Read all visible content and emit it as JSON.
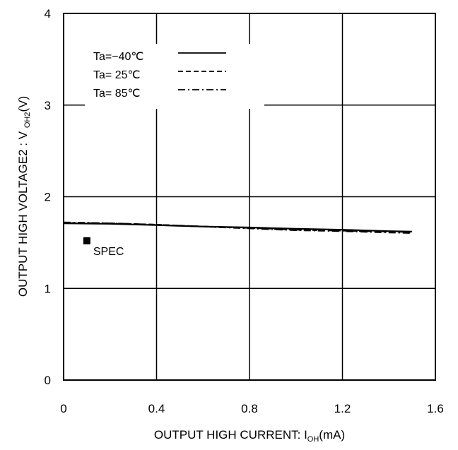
{
  "chart_data": {
    "type": "line",
    "xlabel": {
      "main": "OUTPUT HIGH CURRENT: I",
      "sub": "OH",
      "tail": "(mA)"
    },
    "ylabel": {
      "main": "OUTPUT HIGH VOLTAGE2 : V ",
      "sub": "OH2",
      "tail": "(V)"
    },
    "xlim": [
      0,
      1.6
    ],
    "ylim": [
      0,
      4
    ],
    "x_ticks": [
      "0",
      "0.4",
      "0.8",
      "1.2",
      "1.6"
    ],
    "y_ticks": [
      "0",
      "1",
      "2",
      "3",
      "4"
    ],
    "grid": true,
    "legend_position": "top-left",
    "series": [
      {
        "name": "Ta=−40℃",
        "style": "solid",
        "x": [
          0,
          0.2,
          0.4,
          0.6,
          0.8,
          1.0,
          1.2,
          1.4,
          1.5
        ],
        "y": [
          1.71,
          1.705,
          1.69,
          1.675,
          1.665,
          1.65,
          1.64,
          1.625,
          1.62
        ]
      },
      {
        "name": "Ta= 25℃",
        "style": "dashed",
        "x": [
          0,
          0.2,
          0.4,
          0.6,
          0.8,
          1.0,
          1.2,
          1.4,
          1.5
        ],
        "y": [
          1.715,
          1.71,
          1.695,
          1.675,
          1.66,
          1.64,
          1.63,
          1.62,
          1.615
        ]
      },
      {
        "name": "Ta= 85℃",
        "style": "dashdot",
        "x": [
          0,
          0.2,
          0.4,
          0.6,
          0.8,
          1.0,
          1.2,
          1.4,
          1.5
        ],
        "y": [
          1.72,
          1.71,
          1.695,
          1.675,
          1.655,
          1.635,
          1.625,
          1.61,
          1.605
        ]
      }
    ],
    "annotations": [
      {
        "label": "SPEC",
        "x": 0.1,
        "y": 1.52,
        "marker": "square"
      }
    ]
  }
}
